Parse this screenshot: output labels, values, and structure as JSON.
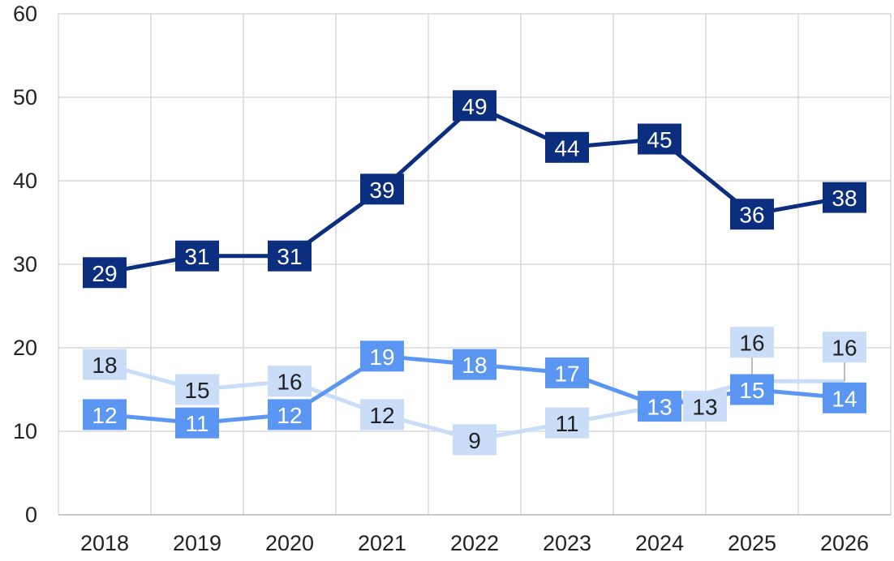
{
  "chart_data": {
    "type": "line",
    "categories": [
      "2018",
      "2019",
      "2020",
      "2021",
      "2022",
      "2023",
      "2024",
      "2025",
      "2026"
    ],
    "series": [
      {
        "color": "#c9dcf8",
        "values": [
          18,
          15,
          16,
          12,
          9,
          11,
          13,
          16,
          16
        ]
      },
      {
        "color": "#5b97f2",
        "values": [
          12,
          11,
          12,
          19,
          18,
          17,
          13,
          15,
          14
        ]
      },
      {
        "color": "#0b2f7e",
        "values": [
          29,
          31,
          31,
          39,
          49,
          44,
          45,
          36,
          38
        ]
      }
    ],
    "ylim": [
      0,
      60
    ],
    "yticks": [
      0,
      10,
      20,
      30,
      40,
      50,
      60
    ],
    "grid": true
  }
}
